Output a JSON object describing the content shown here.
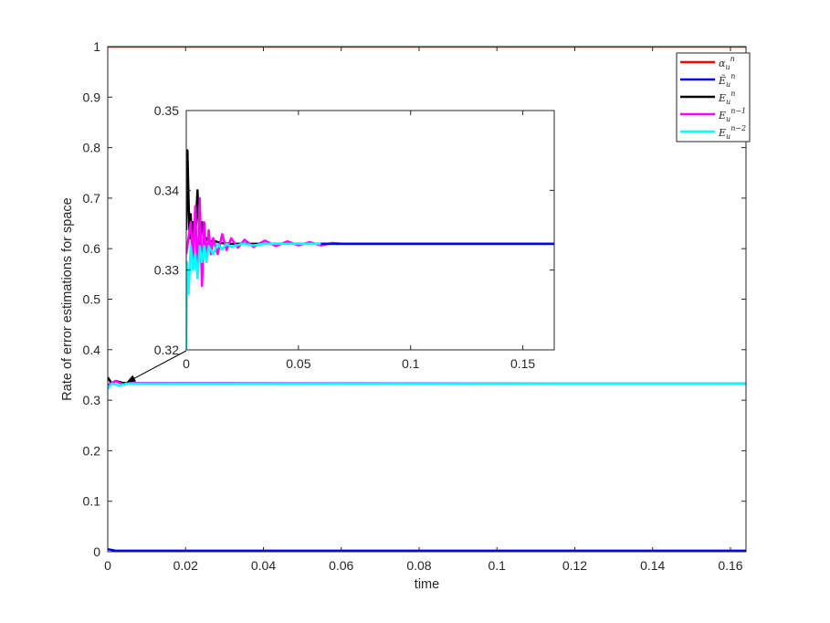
{
  "chart_data": [
    {
      "type": "line",
      "xlabel": "time",
      "ylabel": "Rate of error estimations for space",
      "xlim": [
        0,
        0.164
      ],
      "ylim": [
        0,
        1
      ],
      "xticks": [
        0,
        0.02,
        0.04,
        0.06,
        0.08,
        0.1,
        0.12,
        0.14,
        0.16
      ],
      "xtick_labels": [
        "0",
        "0.02",
        "0.04",
        "0.06",
        "0.08",
        "0.1",
        "0.12",
        "0.14",
        "0.16"
      ],
      "yticks": [
        0,
        0.1,
        0.2,
        0.3,
        0.4,
        0.5,
        0.6,
        0.7,
        0.8,
        0.9,
        1
      ],
      "ytick_labels": [
        "0",
        "0.1",
        "0.2",
        "0.3",
        "0.4",
        "0.5",
        "0.6",
        "0.7",
        "0.8",
        "0.9",
        "1"
      ],
      "grid": false,
      "legend_position": "top-right",
      "series": [
        {
          "name": "α_u^n",
          "color": "#ff0000",
          "x": [
            0,
            0.164
          ],
          "y": [
            1.0,
            1.0
          ]
        },
        {
          "name": "Ẽ_u^n",
          "color": "#0000ff",
          "x": [
            0,
            0.002,
            0.164
          ],
          "y": [
            0.005,
            0.002,
            0.002
          ]
        },
        {
          "name": "E_u^n",
          "color": "#000000",
          "x": [
            0,
            0.001,
            0.002,
            0.004,
            0.006,
            0.164
          ],
          "y": [
            0.345,
            0.333,
            0.338,
            0.334,
            0.333,
            0.333
          ]
        },
        {
          "name": "E_u^{n-1}",
          "color": "#ff00ff",
          "x": [
            0,
            0.002,
            0.004,
            0.006,
            0.164
          ],
          "y": [
            0.33,
            0.338,
            0.331,
            0.334,
            0.333
          ]
        },
        {
          "name": "E_u^{n-2}",
          "color": "#00ffff",
          "x": [
            0,
            0.001,
            0.003,
            0.005,
            0.164
          ],
          "y": [
            0.322,
            0.333,
            0.329,
            0.333,
            0.333
          ]
        }
      ],
      "annotation": "arrow pointing from inset to x≈0.005, y≈0.333"
    },
    {
      "type": "line",
      "role": "inset",
      "xlim": [
        0,
        0.164
      ],
      "ylim": [
        0.32,
        0.35
      ],
      "xticks": [
        0,
        0.05,
        0.1,
        0.15
      ],
      "xtick_labels": [
        "0",
        "0.05",
        "0.1",
        "0.15"
      ],
      "yticks": [
        0.32,
        0.33,
        0.34,
        0.35
      ],
      "ytick_labels": [
        "0.32",
        "0.33",
        "0.34",
        "0.35"
      ],
      "series": [
        {
          "name": "E_u^n",
          "color": "#000000",
          "x": [
            0,
            0.0005,
            0.001,
            0.0015,
            0.002,
            0.0025,
            0.003,
            0.004,
            0.005,
            0.006,
            0.007,
            0.008,
            0.009,
            0.01,
            0.012,
            0.015,
            0.02,
            0.164
          ],
          "y": [
            0.335,
            0.345,
            0.339,
            0.334,
            0.337,
            0.333,
            0.336,
            0.334,
            0.34,
            0.333,
            0.336,
            0.334,
            0.334,
            0.3335,
            0.3337,
            0.3334,
            0.3333,
            0.3333
          ]
        },
        {
          "name": "E_u^{n-1}",
          "color": "#ff00ff",
          "x": [
            0,
            0.002,
            0.003,
            0.004,
            0.005,
            0.006,
            0.007,
            0.008,
            0.009,
            0.01,
            0.011,
            0.012,
            0.014,
            0.016,
            0.018,
            0.02,
            0.023,
            0.026,
            0.03,
            0.035,
            0.04,
            0.045,
            0.05,
            0.055,
            0.06,
            0.065,
            0.07,
            0.164
          ],
          "y": [
            0.332,
            0.336,
            0.331,
            0.338,
            0.329,
            0.339,
            0.328,
            0.336,
            0.331,
            0.335,
            0.332,
            0.334,
            0.332,
            0.3345,
            0.3325,
            0.334,
            0.3328,
            0.3338,
            0.3329,
            0.3337,
            0.333,
            0.3336,
            0.3331,
            0.3335,
            0.3331,
            0.3334,
            0.3333,
            0.3333
          ]
        },
        {
          "name": "E_u^{n-2}",
          "color": "#00ffff",
          "x": [
            0,
            0.0003,
            0.001,
            0.002,
            0.003,
            0.004,
            0.005,
            0.006,
            0.007,
            0.008,
            0.009,
            0.01,
            0.012,
            0.014,
            0.016,
            0.018,
            0.02,
            0.025,
            0.03,
            0.035,
            0.04,
            0.164
          ],
          "y": [
            0.32,
            0.331,
            0.327,
            0.333,
            0.33,
            0.332,
            0.329,
            0.333,
            0.331,
            0.333,
            0.331,
            0.333,
            0.332,
            0.3333,
            0.3326,
            0.3333,
            0.3329,
            0.3333,
            0.3331,
            0.3333,
            0.3333,
            0.3333
          ]
        },
        {
          "name": "Ẽ_u^n",
          "color": "#0000ff",
          "x": [
            0.06,
            0.164
          ],
          "y": [
            0.3333,
            0.3333
          ]
        }
      ]
    }
  ],
  "legend": {
    "entries": [
      {
        "base": "α",
        "sub": "u",
        "sup": "n",
        "color": "#ff0000"
      },
      {
        "base": "Ẽ",
        "sub": "u",
        "sup": "n",
        "color": "#0000ff"
      },
      {
        "base": "E",
        "sub": "u",
        "sup": "n",
        "color": "#000000"
      },
      {
        "base": "E",
        "sub": "u",
        "sup": "n−1",
        "color": "#ff00ff"
      },
      {
        "base": "E",
        "sub": "u",
        "sup": "n−2",
        "color": "#00ffff"
      }
    ]
  }
}
